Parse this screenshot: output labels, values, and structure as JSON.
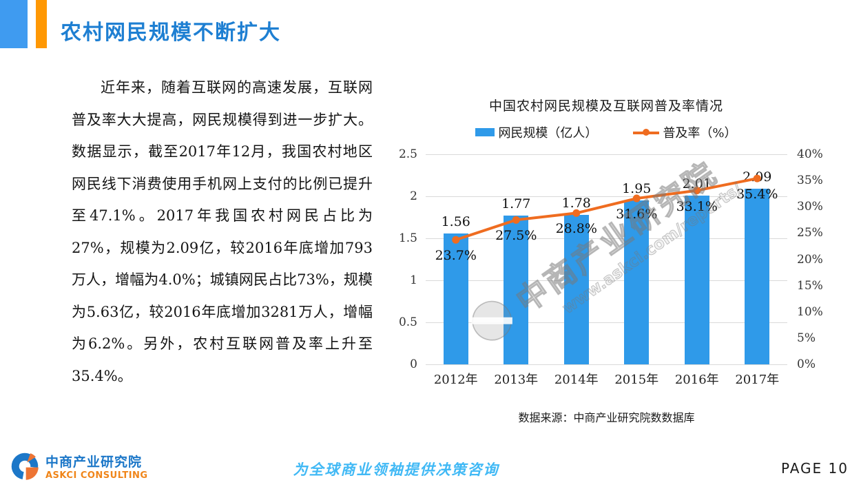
{
  "page": {
    "title": "农村网民规模不断扩大",
    "page_label": "PAGE 10",
    "slogan": "为全球商业领袖提供决策咨询"
  },
  "body_text": "近年来，随着互联网的高速发展，互联网普及率大大提高，网民规模得到进一步扩大。数据显示，截至2017年12月，我国农村地区网民线下消费使用手机网上支付的比例已提升至47.1%。2017年我国农村网民占比为27%，规模为2.09亿，较2016年底增加793万人，增幅为4.0%；城镇网民占比73%，规模为5.63亿，较2016年底增加3281万人，增幅为6.2%。另外，农村互联网普及率上升至35.4%。",
  "logo": {
    "cn": "中商产业研究院",
    "en": "ASKCI CONSULTING"
  },
  "watermark": {
    "cn": "中商产业研究院",
    "url": "www.askci.com/reports/"
  },
  "colors": {
    "bar": "#2F9AE9",
    "line": "#EF6C20",
    "title_blue": "#1E7FD2",
    "deco_blue": "#3F9BF0",
    "deco_orange": "#FF9803"
  },
  "chart_data": {
    "type": "bar",
    "title": "中国农村网民规模及互联网普及率情况",
    "categories": [
      "2012年",
      "2013年",
      "2014年",
      "2015年",
      "2016年",
      "2017年"
    ],
    "series": [
      {
        "name": "网民规模（亿人）",
        "type": "bar",
        "axis": "left",
        "color": "#2F9AE9",
        "values": [
          1.56,
          1.77,
          1.78,
          1.95,
          2.01,
          2.09
        ],
        "labels": [
          "1.56",
          "1.77",
          "1.78",
          "1.95",
          "2.01",
          "2.09"
        ]
      },
      {
        "name": "普及率（%）",
        "type": "line",
        "axis": "right",
        "color": "#EF6C20",
        "values": [
          23.7,
          27.5,
          28.8,
          31.6,
          33.1,
          35.4
        ],
        "labels": [
          "23.7%",
          "27.5%",
          "28.8%",
          "31.6%",
          "33.1%",
          "35.4%"
        ]
      }
    ],
    "left_axis": {
      "min": 0,
      "max": 2.5,
      "step": 0.5,
      "labels": [
        "0",
        "0.5",
        "1",
        "1.5",
        "2",
        "2.5"
      ]
    },
    "right_axis": {
      "min": 0,
      "max": 40,
      "step": 5,
      "labels": [
        "0%",
        "5%",
        "10%",
        "15%",
        "20%",
        "25%",
        "30%",
        "35%",
        "40%"
      ]
    },
    "grid": true,
    "legend_position": "top",
    "source": "数据来源：中商产业研究院数数据库"
  }
}
